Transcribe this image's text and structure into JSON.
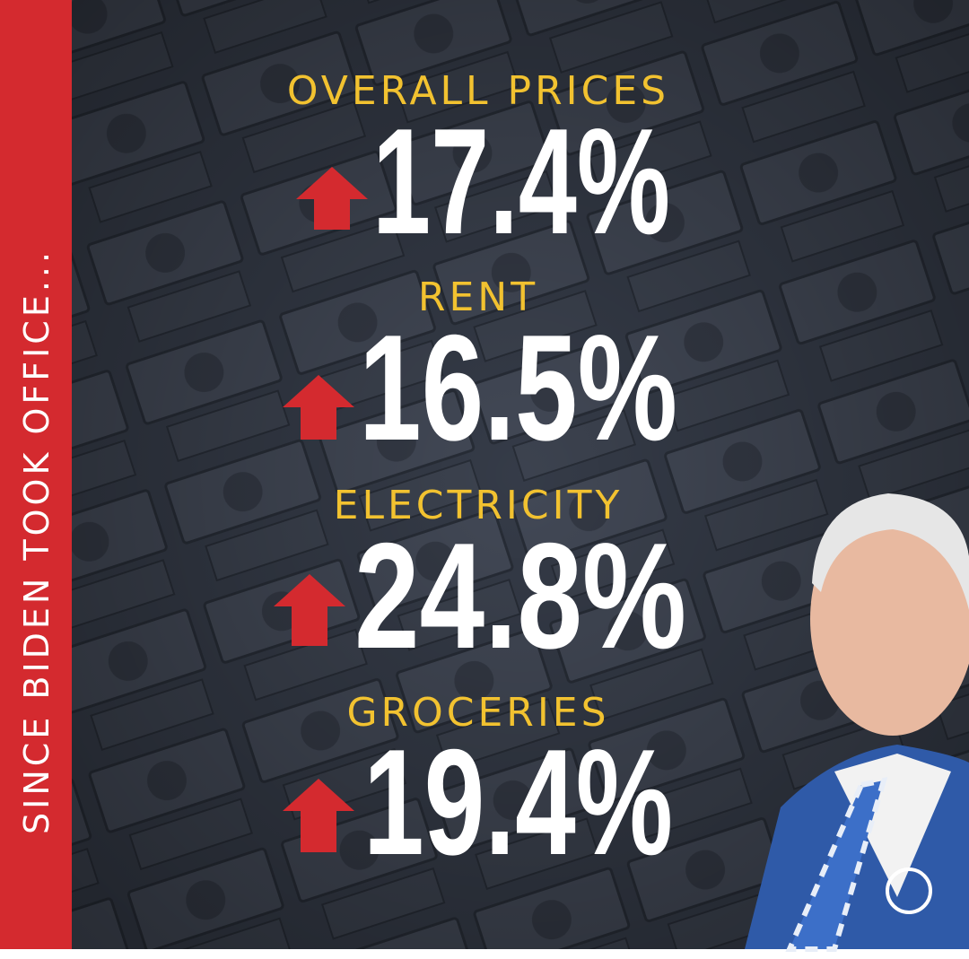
{
  "sidebar": {
    "text": "SINCE BIDEN TOOK OFFICE..."
  },
  "items": [
    {
      "label": "OVERALL PRICES",
      "value": "17.4%"
    },
    {
      "label": "RENT",
      "value": "16.5%"
    },
    {
      "label": "ELECTRICITY",
      "value": "24.8%"
    },
    {
      "label": "GROCERIES",
      "value": "19.4%"
    }
  ]
}
